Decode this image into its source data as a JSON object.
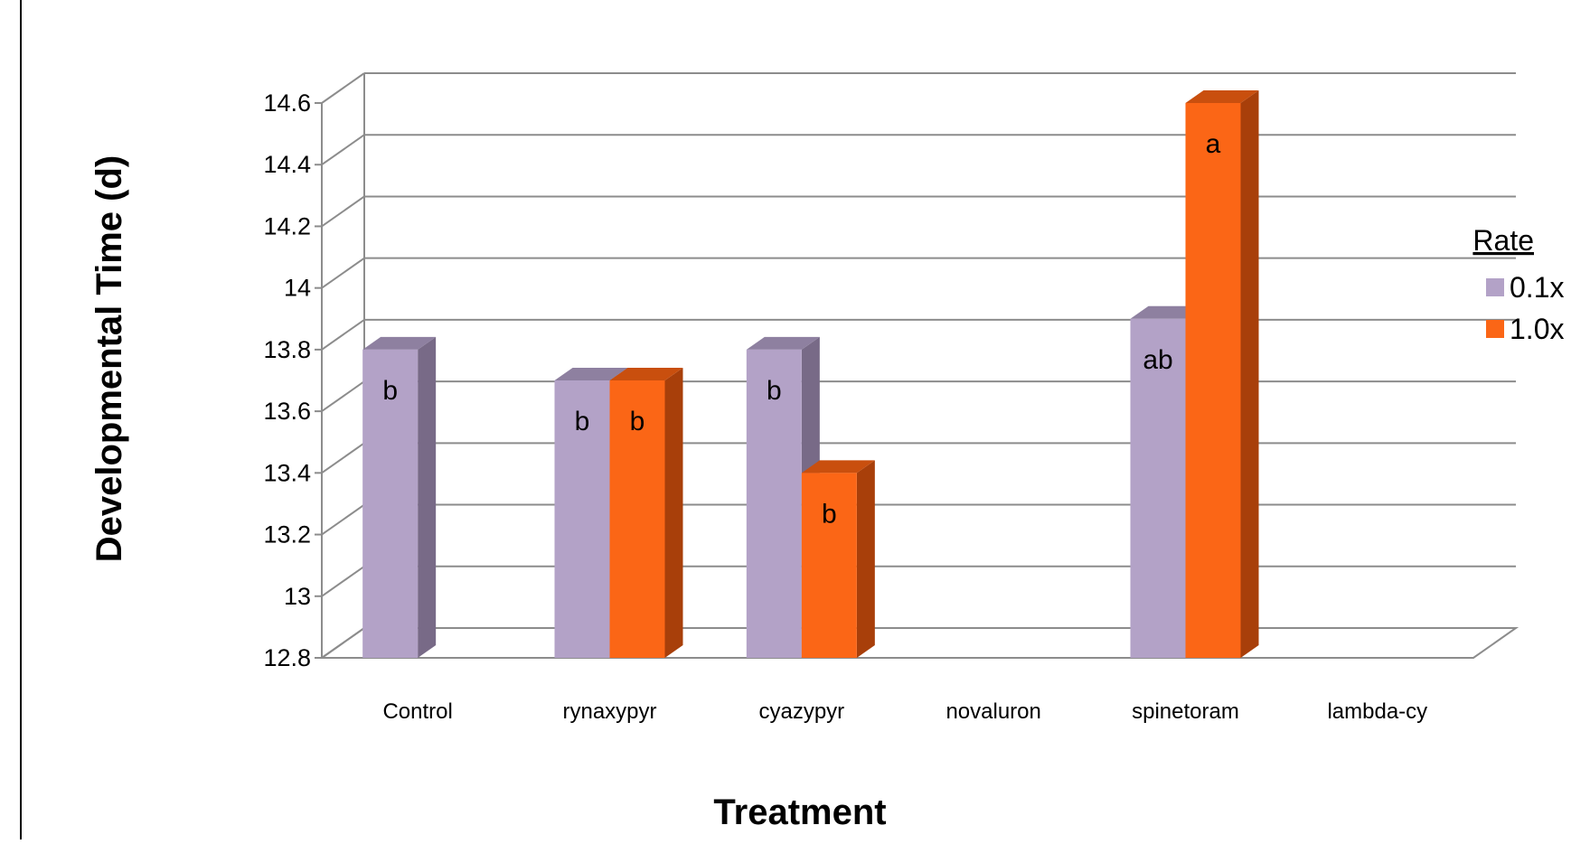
{
  "chart_data": {
    "type": "bar",
    "title": "",
    "xlabel": "Treatment",
    "ylabel": "Developmental Time (d)",
    "ylim": [
      12.8,
      14.6
    ],
    "yticks": [
      "12.8",
      "13",
      "13.2",
      "13.4",
      "13.6",
      "13.8",
      "14",
      "14.2",
      "14.4",
      "14.6"
    ],
    "grid": true,
    "legend": {
      "title": "Rate",
      "placement": "right"
    },
    "categories": [
      "Control",
      "rynaxypyr",
      "cyazypyr",
      "novaluron",
      "spinetoram",
      "lambda-cy"
    ],
    "series": [
      {
        "name": "0.1x",
        "color": "#b3a2c7",
        "side_color": "#786a87",
        "top_color": "#8e80a0",
        "values": [
          13.8,
          13.7,
          13.8,
          null,
          13.9,
          null
        ],
        "labels": [
          "b",
          "b",
          "b",
          "",
          "ab",
          ""
        ]
      },
      {
        "name": "1.0x",
        "color": "#fb6616",
        "side_color": "#a83f0a",
        "top_color": "#c94f0e",
        "values": [
          null,
          13.7,
          13.4,
          null,
          14.6,
          null
        ],
        "labels": [
          "",
          "b",
          "b",
          "",
          "a",
          ""
        ]
      }
    ]
  }
}
